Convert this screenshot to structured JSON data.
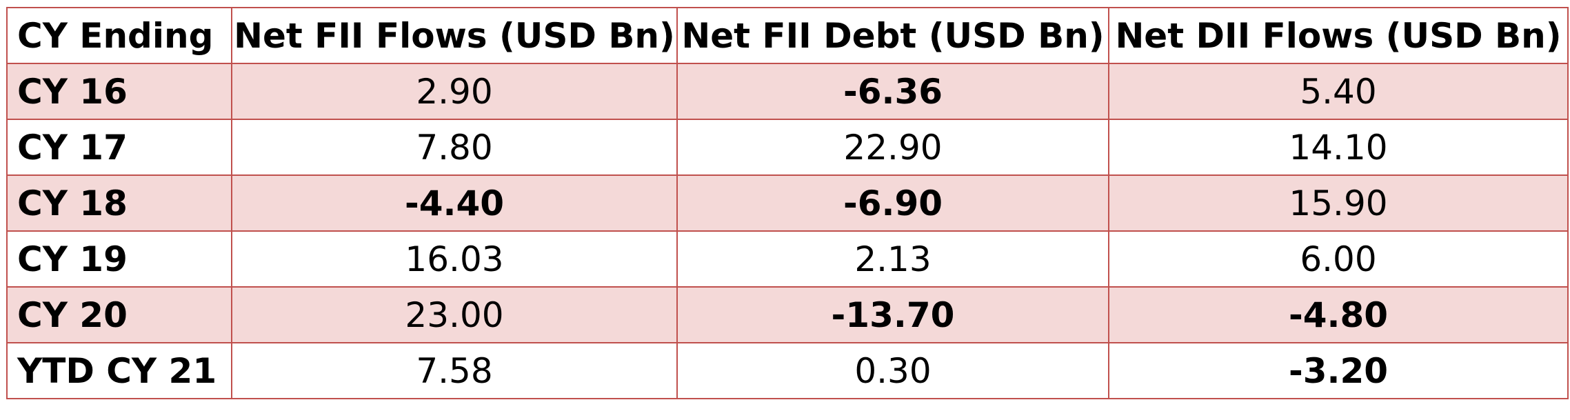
{
  "table": {
    "headers": [
      "CY Ending",
      "Net FII Flows (USD Bn)",
      "Net FII Debt (USD Bn)",
      "Net DII Flows (USD Bn)"
    ],
    "rows": [
      {
        "label": "CY 16",
        "values": [
          "2.90",
          "-6.36",
          "5.40"
        ],
        "shaded": true
      },
      {
        "label": "CY 17",
        "values": [
          "7.80",
          "22.90",
          "14.10"
        ],
        "shaded": false
      },
      {
        "label": "CY 18",
        "values": [
          "-4.40",
          "-6.90",
          "15.90"
        ],
        "shaded": true
      },
      {
        "label": "CY 19",
        "values": [
          "16.03",
          "2.13",
          "6.00"
        ],
        "shaded": false
      },
      {
        "label": "CY 20",
        "values": [
          "23.00",
          "-13.70",
          "-4.80"
        ],
        "shaded": true
      },
      {
        "label": "YTD CY 21",
        "values": [
          "7.58",
          "0.30",
          "-3.20"
        ],
        "shaded": false
      }
    ]
  },
  "colors": {
    "border": "#c0504d",
    "shaded_row": "#f4d9d8",
    "plain_row": "#ffffff"
  }
}
